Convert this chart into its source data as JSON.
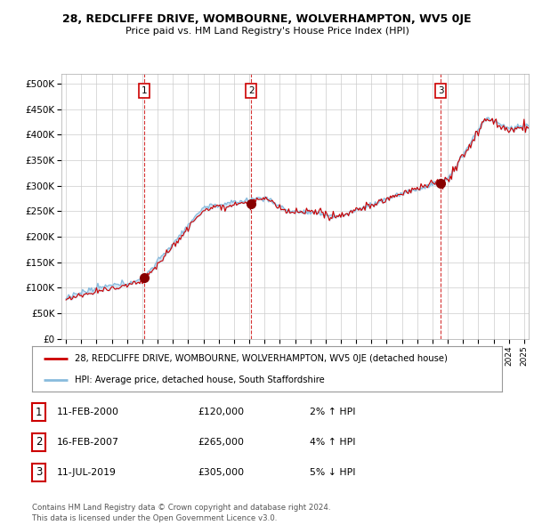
{
  "title": "28, REDCLIFFE DRIVE, WOMBOURNE, WOLVERHAMPTON, WV5 0JE",
  "subtitle": "Price paid vs. HM Land Registry's House Price Index (HPI)",
  "property_label": "28, REDCLIFFE DRIVE, WOMBOURNE, WOLVERHAMPTON, WV5 0JE (detached house)",
  "hpi_label": "HPI: Average price, detached house, South Staffordshire",
  "property_color": "#cc0000",
  "hpi_color": "#88bbdd",
  "fill_color": "#ddeeff",
  "transactions": [
    {
      "num": 1,
      "date_x": 2000.12,
      "price": 120000,
      "label": "11-FEB-2000",
      "price_str": "£120,000",
      "pct": "2%",
      "dir": "↑"
    },
    {
      "num": 2,
      "date_x": 2007.12,
      "price": 265000,
      "label": "16-FEB-2007",
      "price_str": "£265,000",
      "pct": "4%",
      "dir": "↑"
    },
    {
      "num": 3,
      "date_x": 2019.54,
      "price": 305000,
      "label": "11-JUL-2019",
      "price_str": "£305,000",
      "pct": "5%",
      "dir": "↓"
    }
  ],
  "vline_color": "#cc0000",
  "marker_color": "#880000",
  "footer": "Contains HM Land Registry data © Crown copyright and database right 2024.\nThis data is licensed under the Open Government Licence v3.0.",
  "ylim": [
    0,
    520000
  ],
  "xlim": [
    1994.7,
    2025.3
  ],
  "yticks": [
    0,
    50000,
    100000,
    150000,
    200000,
    250000,
    300000,
    350000,
    400000,
    450000,
    500000
  ],
  "background_color": "#ffffff",
  "grid_color": "#cccccc"
}
